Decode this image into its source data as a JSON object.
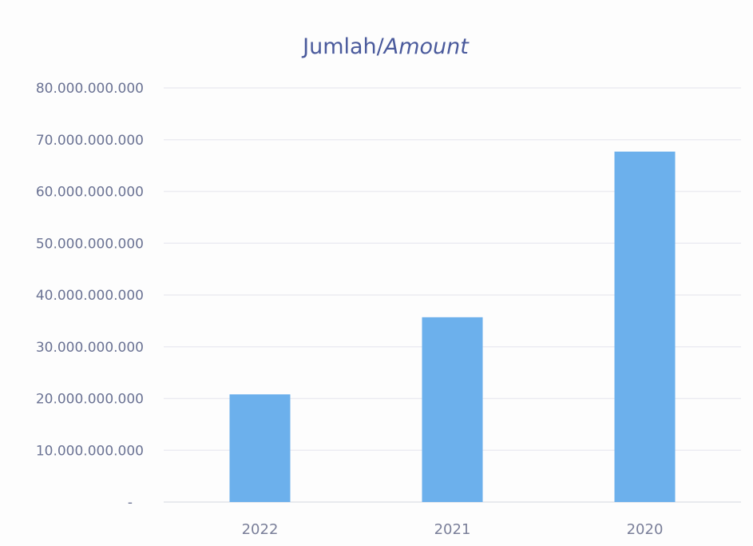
{
  "chart_data": {
    "type": "bar",
    "title": "Jumlah/Amount",
    "title_parts": {
      "regular": "Jumlah/",
      "italic": "Amount"
    },
    "xlabel": "",
    "ylabel": "",
    "categories": [
      "2022",
      "2021",
      "2020"
    ],
    "series": [
      {
        "values": [
          20800000000,
          35700000000,
          67700000000
        ]
      }
    ],
    "ylim": [
      0,
      80000000000
    ],
    "yticks": [
      0,
      10000000000,
      20000000000,
      30000000000,
      40000000000,
      50000000000,
      60000000000,
      70000000000,
      80000000000
    ],
    "ytick_labels": [
      "-",
      "10.000.000.000",
      "20.000.000.000",
      "30.000.000.000",
      "40.000.000.000",
      "50.000.000.000",
      "60.000.000.000",
      "70.000.000.000",
      "80.000.000.000"
    ],
    "grid": true,
    "legend": "none",
    "bar_color": "#6cb0ec"
  }
}
